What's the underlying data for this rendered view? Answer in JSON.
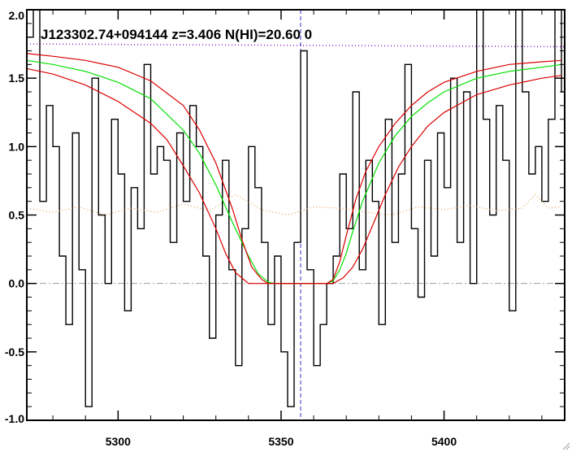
{
  "chart_data": {
    "type": "line",
    "title": "J123302.74+094144 z=3.406 N(HI)=20.60 0",
    "xlabel": "",
    "ylabel": "",
    "xlim": [
      5272,
      5437
    ],
    "ylim": [
      -1.0,
      2.0
    ],
    "x_ticks": [
      5300,
      5350,
      5400
    ],
    "x_tick_labels": [
      "5300",
      "5350",
      "5400"
    ],
    "y_ticks": [
      -1.0,
      -0.5,
      0.0,
      0.5,
      1.0,
      1.5,
      2.0
    ],
    "y_tick_labels": [
      "-1.0",
      "-0.5",
      "0.0",
      "0.5",
      "1.0",
      "1.5",
      "2.0"
    ],
    "grid": false,
    "reference_lines": {
      "zero_level": 0.0,
      "continuum_level_start": 1.75,
      "continuum_level_end": 1.73,
      "line_center_x": 5356
    },
    "series": [
      {
        "role": "flux",
        "style": "step",
        "color": "#000000",
        "x": [
          5272,
          5274,
          5276,
          5278,
          5280,
          5282,
          5284,
          5286,
          5288,
          5290,
          5292,
          5294,
          5296,
          5298,
          5300,
          5302,
          5304,
          5306,
          5308,
          5310,
          5312,
          5314,
          5316,
          5318,
          5320,
          5322,
          5324,
          5326,
          5328,
          5330,
          5332,
          5334,
          5336,
          5338,
          5340,
          5342,
          5344,
          5346,
          5348,
          5350,
          5352,
          5354,
          5356,
          5358,
          5360,
          5362,
          5364,
          5366,
          5368,
          5370,
          5372,
          5374,
          5376,
          5378,
          5380,
          5382,
          5384,
          5386,
          5388,
          5390,
          5392,
          5394,
          5396,
          5398,
          5400,
          5402,
          5404,
          5406,
          5408,
          5410,
          5412,
          5414,
          5416,
          5418,
          5420,
          5422,
          5424,
          5426,
          5428,
          5430,
          5432,
          5434,
          5436
        ],
        "y": [
          1.8,
          2.0,
          0.6,
          1.3,
          1.0,
          0.2,
          -0.3,
          1.1,
          0.1,
          -0.9,
          1.5,
          0.5,
          0.0,
          1.2,
          0.8,
          -0.2,
          0.7,
          0.4,
          1.6,
          0.8,
          1.0,
          0.9,
          0.3,
          1.1,
          0.6,
          1.3,
          1.0,
          0.2,
          -0.4,
          0.5,
          0.9,
          0.1,
          -0.6,
          0.4,
          1.0,
          0.7,
          0.3,
          -0.3,
          0.2,
          -0.5,
          -0.9,
          0.3,
          1.7,
          0.1,
          -0.6,
          -0.3,
          0.0,
          0.2,
          0.8,
          0.4,
          1.4,
          0.1,
          0.9,
          0.6,
          -0.3,
          1.2,
          0.3,
          0.8,
          1.6,
          0.4,
          -0.1,
          0.9,
          0.2,
          1.1,
          0.7,
          1.5,
          0.3,
          1.4,
          0.0,
          2.2,
          1.2,
          0.5,
          1.3,
          0.9,
          -0.2,
          2.0,
          1.4,
          0.8,
          1.0,
          0.6,
          1.2,
          2.1,
          1.4
        ]
      },
      {
        "role": "error",
        "style": "dotted",
        "color": "#e39a4a",
        "x": [
          5272,
          5280,
          5288,
          5296,
          5304,
          5312,
          5320,
          5328,
          5336,
          5344,
          5352,
          5360,
          5368,
          5376,
          5384,
          5392,
          5400,
          5408,
          5416,
          5424,
          5428,
          5432,
          5436
        ],
        "y": [
          0.55,
          0.52,
          0.56,
          0.5,
          0.55,
          0.52,
          0.58,
          0.53,
          0.65,
          0.54,
          0.5,
          0.56,
          0.55,
          0.52,
          0.5,
          0.56,
          0.54,
          0.57,
          0.53,
          0.55,
          0.65,
          0.55,
          0.56
        ]
      },
      {
        "role": "fit",
        "style": "solid",
        "color": "#00e000",
        "x": [
          5272,
          5280,
          5290,
          5300,
          5310,
          5320,
          5325,
          5330,
          5335,
          5340,
          5343,
          5346,
          5348,
          5350,
          5355,
          5360,
          5364,
          5366,
          5368,
          5370,
          5372,
          5375,
          5380,
          5385,
          5390,
          5395,
          5400,
          5410,
          5420,
          5430,
          5436
        ],
        "y": [
          1.63,
          1.6,
          1.55,
          1.47,
          1.35,
          1.12,
          0.95,
          0.72,
          0.45,
          0.2,
          0.07,
          0.01,
          0.0,
          0.0,
          0.0,
          0.0,
          0.0,
          0.02,
          0.1,
          0.22,
          0.38,
          0.6,
          0.88,
          1.08,
          1.22,
          1.32,
          1.4,
          1.5,
          1.55,
          1.58,
          1.6
        ]
      },
      {
        "role": "fit-upper",
        "style": "solid",
        "color": "#dd0000",
        "x": [
          5272,
          5280,
          5290,
          5300,
          5310,
          5320,
          5325,
          5330,
          5335,
          5338,
          5341,
          5344,
          5346,
          5348,
          5350,
          5360,
          5364,
          5366,
          5368,
          5370,
          5373,
          5376,
          5380,
          5385,
          5390,
          5395,
          5400,
          5410,
          5420,
          5430,
          5436
        ],
        "y": [
          1.68,
          1.66,
          1.63,
          1.58,
          1.48,
          1.3,
          1.12,
          0.88,
          0.55,
          0.32,
          0.12,
          0.03,
          0.0,
          0.0,
          0.0,
          0.0,
          0.0,
          0.03,
          0.16,
          0.35,
          0.62,
          0.82,
          1.0,
          1.17,
          1.3,
          1.4,
          1.47,
          1.55,
          1.6,
          1.62,
          1.63
        ]
      },
      {
        "role": "fit-lower",
        "style": "solid",
        "color": "#dd0000",
        "x": [
          5272,
          5280,
          5290,
          5300,
          5310,
          5315,
          5320,
          5325,
          5330,
          5333,
          5336,
          5340,
          5344,
          5346,
          5348,
          5350,
          5360,
          5366,
          5369,
          5372,
          5375,
          5378,
          5382,
          5386,
          5390,
          5395,
          5400,
          5410,
          5420,
          5430,
          5436
        ],
        "y": [
          1.57,
          1.53,
          1.45,
          1.33,
          1.17,
          1.05,
          0.86,
          0.66,
          0.4,
          0.22,
          0.08,
          0.0,
          0.0,
          0.0,
          0.0,
          0.0,
          0.0,
          0.0,
          0.04,
          0.12,
          0.25,
          0.42,
          0.65,
          0.85,
          1.0,
          1.15,
          1.25,
          1.38,
          1.45,
          1.5,
          1.52
        ]
      }
    ],
    "colors": {
      "frame": "#000000",
      "zero_line": "#a0a0a0",
      "continuum_line": "#9020d0",
      "center_line": "#3030d0"
    }
  }
}
